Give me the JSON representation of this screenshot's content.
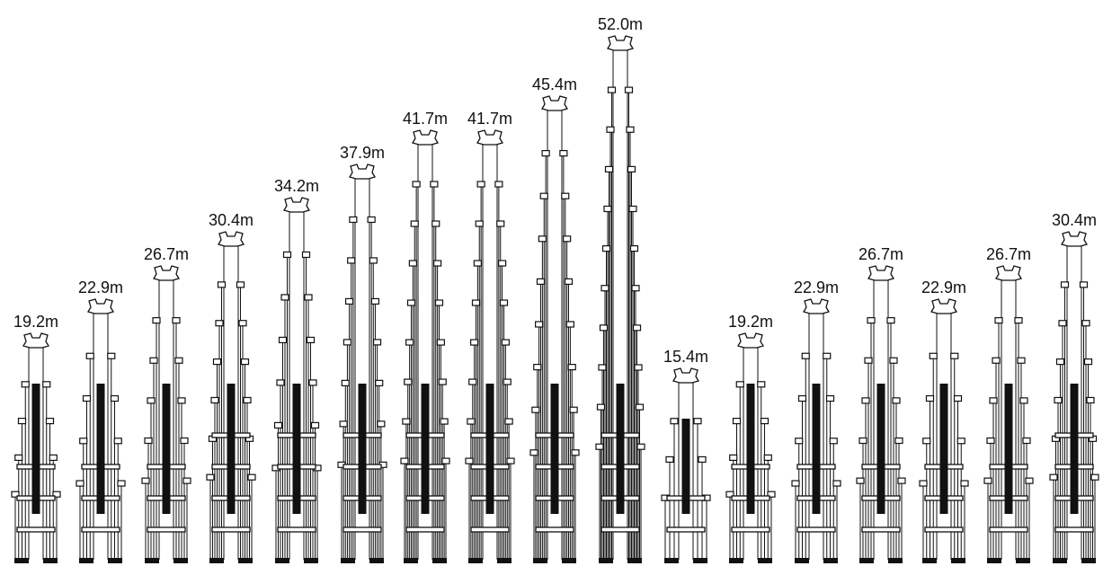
{
  "towers": [
    {
      "label": "19.2m",
      "height_m": 19.2
    },
    {
      "label": "22.9m",
      "height_m": 22.9
    },
    {
      "label": "26.7m",
      "height_m": 26.7
    },
    {
      "label": "30.4m",
      "height_m": 30.4
    },
    {
      "label": "34.2m",
      "height_m": 34.2
    },
    {
      "label": "37.9m",
      "height_m": 37.9
    },
    {
      "label": "41.7m",
      "height_m": 41.7
    },
    {
      "label": "41.7m",
      "height_m": 41.7
    },
    {
      "label": "45.4m",
      "height_m": 45.4
    },
    {
      "label": "52.0m",
      "height_m": 52.0
    },
    {
      "label": "15.4m",
      "height_m": 15.4
    },
    {
      "label": "19.2m",
      "height_m": 19.2
    },
    {
      "label": "22.9m",
      "height_m": 22.9
    },
    {
      "label": "26.7m",
      "height_m": 26.7
    },
    {
      "label": "22.9m",
      "height_m": 22.9
    },
    {
      "label": "26.7m",
      "height_m": 26.7
    },
    {
      "label": "30.4m",
      "height_m": 30.4
    }
  ]
}
